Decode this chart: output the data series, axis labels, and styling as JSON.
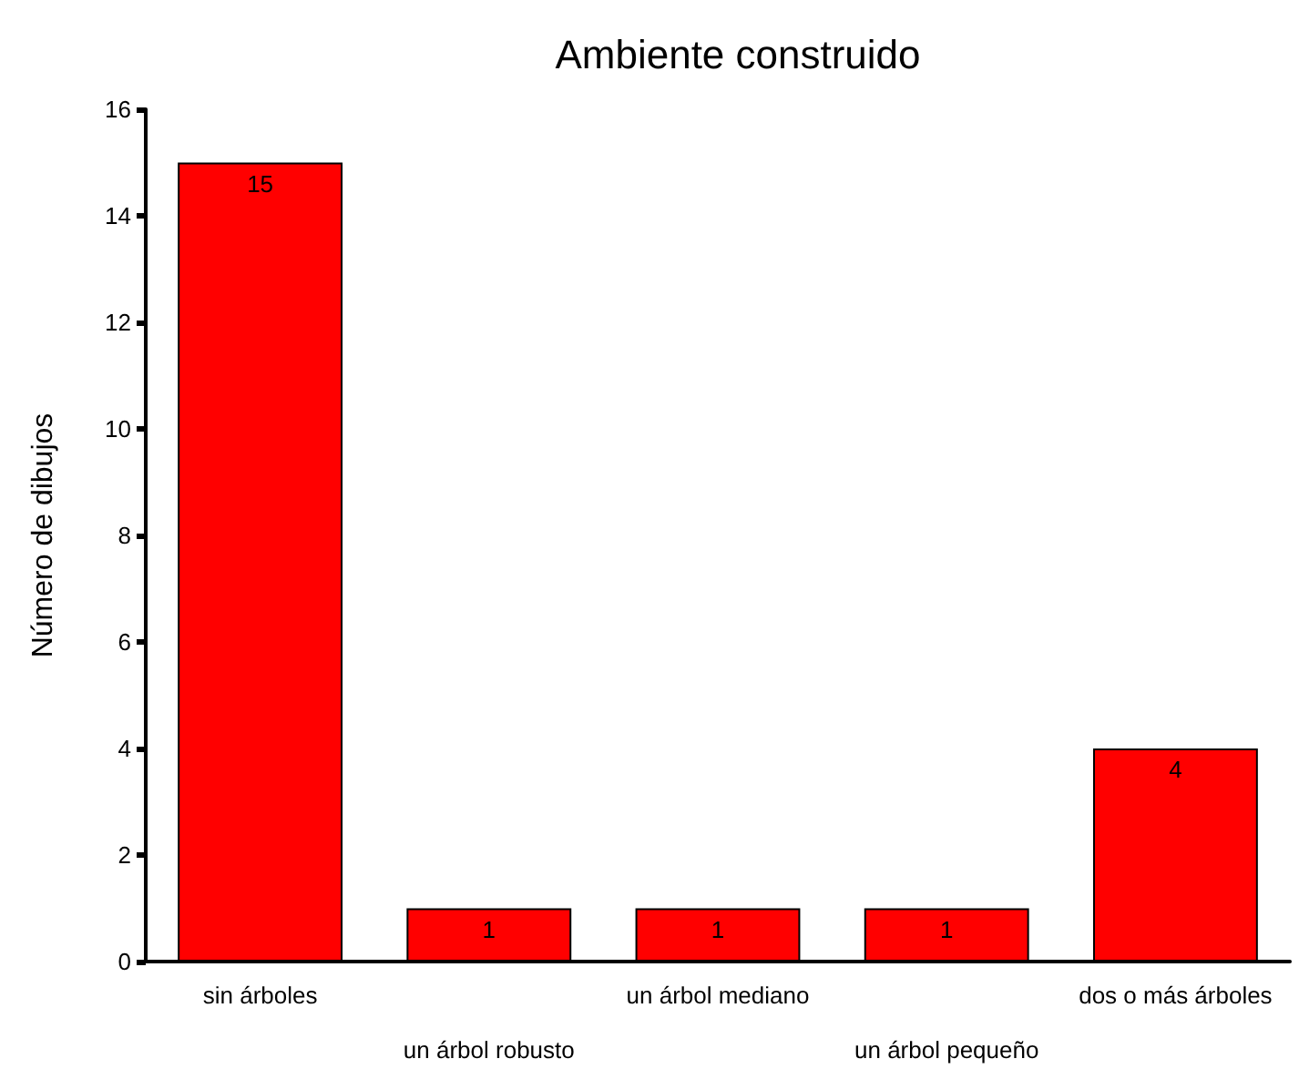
{
  "chart_data": {
    "type": "bar",
    "title": "Ambiente construido",
    "ylabel": "Número de dibujos",
    "categories": [
      "sin árboles",
      "un árbol robusto",
      "un árbol mediano",
      "un árbol pequeño",
      "dos o más árboles"
    ],
    "values": [
      15,
      1,
      1,
      1,
      4
    ],
    "color": "#ff0000",
    "ylim": [
      0,
      16
    ],
    "yticks": [
      0,
      2,
      4,
      6,
      8,
      10,
      12,
      14,
      16
    ],
    "grid": false,
    "data_labels": true
  }
}
